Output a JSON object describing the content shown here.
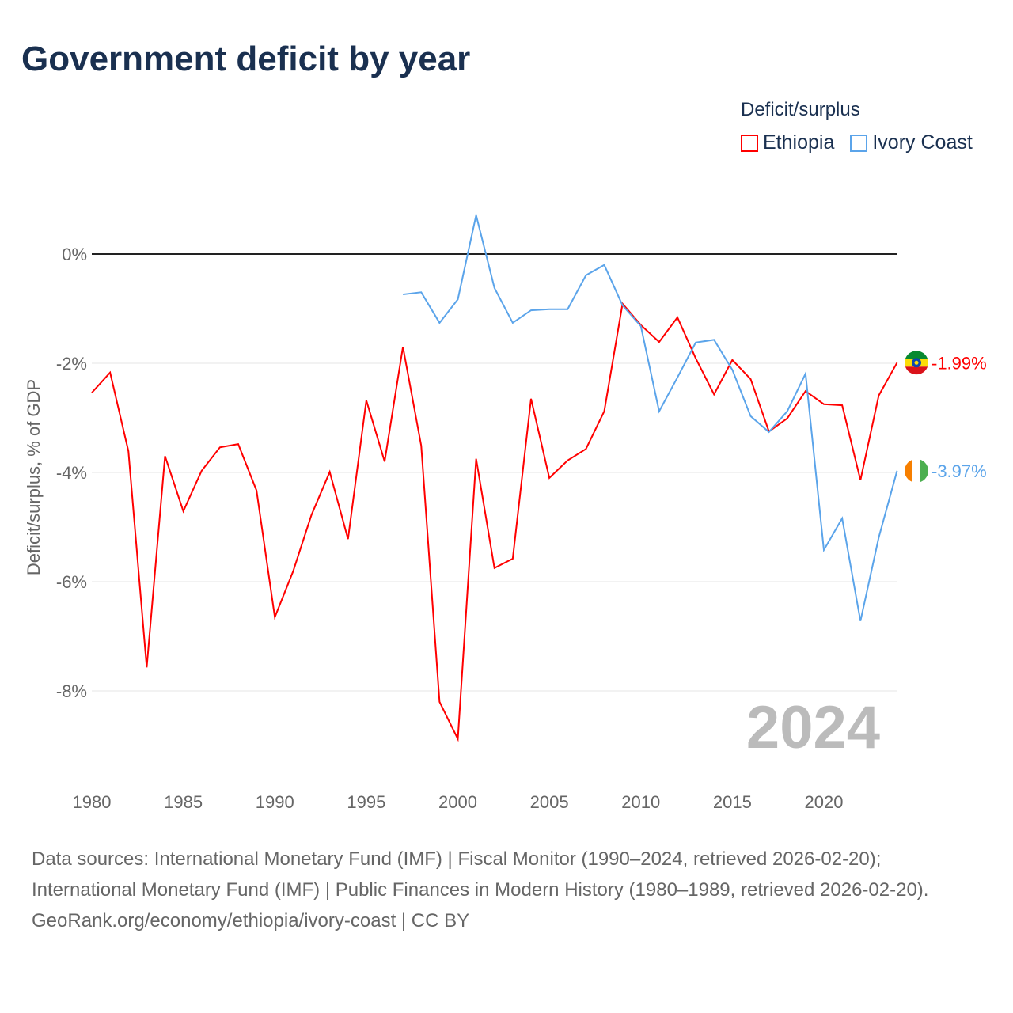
{
  "title": "Government deficit by year",
  "legend": {
    "title": "Deficit/surplus",
    "items": [
      {
        "label": "Ethiopia",
        "color": "#ff0000"
      },
      {
        "label": "Ivory Coast",
        "color": "#5ba4ea"
      }
    ]
  },
  "year_label": "2024",
  "source": {
    "line1": "Data sources: International Monetary Fund (IMF) | Fiscal Monitor (1990–2024, retrieved 2026-02-20); International Monetary Fund (IMF) | Public Finances in Modern History (1980–1989, retrieved 2026-02-20).",
    "line2": "GeoRank.org/economy/ethiopia/ivory-coast | CC BY"
  },
  "chart_data": {
    "type": "line",
    "title": "Government deficit by year",
    "ylabel": "Deficit/surplus, % of GDP",
    "xlabel": "",
    "xlim": [
      1980,
      2024
    ],
    "ylim": [
      -9.6,
      1.0
    ],
    "xticks": [
      1980,
      1985,
      1990,
      1995,
      2000,
      2005,
      2010,
      2015,
      2020
    ],
    "yticks": [
      {
        "v": 0,
        "label": "0%"
      },
      {
        "v": -2,
        "label": "-2%"
      },
      {
        "v": -4,
        "label": "-4%"
      },
      {
        "v": -6,
        "label": "-6%"
      },
      {
        "v": -8,
        "label": "-8%"
      }
    ],
    "series": [
      {
        "name": "Ethiopia",
        "color": "#ff0000",
        "end_label": "-1.99%",
        "start": 1980,
        "values": [
          -2.54,
          -2.17,
          -3.61,
          -7.57,
          -3.7,
          -4.71,
          -3.97,
          -3.54,
          -3.48,
          -4.33,
          -6.65,
          -5.81,
          -4.78,
          -3.99,
          -5.22,
          -2.68,
          -3.8,
          -1.7,
          -3.51,
          -8.2,
          -8.88,
          -3.75,
          -5.75,
          -5.58,
          -2.65,
          -4.1,
          -3.78,
          -3.57,
          -2.88,
          -0.91,
          -1.3,
          -1.61,
          -1.16,
          -1.91,
          -2.57,
          -1.94,
          -2.29,
          -3.25,
          -3.01,
          -2.51,
          -2.75,
          -2.77,
          -4.14,
          -2.59,
          -1.99
        ]
      },
      {
        "name": "Ivory Coast",
        "color": "#5ba4ea",
        "end_label": "-3.97%",
        "start": 1997,
        "values": [
          -0.74,
          -0.7,
          -1.26,
          -0.83,
          0.71,
          -0.62,
          -1.26,
          -1.03,
          -1.01,
          -1.01,
          -0.39,
          -0.2,
          -0.94,
          -1.32,
          -2.88,
          -2.26,
          -1.62,
          -1.57,
          -2.12,
          -2.97,
          -3.26,
          -2.88,
          -2.19,
          -5.42,
          -4.84,
          -6.72,
          -5.19,
          -3.97
        ]
      }
    ]
  }
}
